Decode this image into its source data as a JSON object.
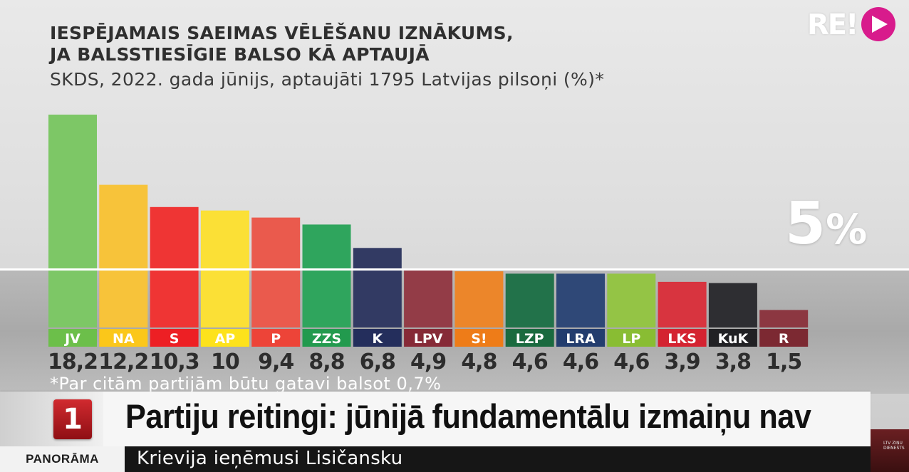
{
  "title_lines": [
    "Iespējamais Saeimas vēlēšanu iznākums,",
    "ja balsstiesīgie balso kā aptaujā"
  ],
  "subtitle": "SKDS, 2022. gada jūnijs, aptaujāti 1795 Latvijas pilsoņi (%)*",
  "logo": {
    "text": "RE!",
    "icon": "play-icon",
    "accent": "#d81b8c"
  },
  "threshold_label": {
    "number": "5",
    "unit": "%"
  },
  "footnote": "*Par citām partijām būtu gatavi balsot 0,7%",
  "ticker": {
    "channel_logo": "1",
    "headline": "Partiju reitingi: jūnijā fundamentālu izmaiņu nav",
    "program": "PANORĀMA",
    "subline": "Krievija ieņēmusi Lisičansku",
    "corner_text": "LTV ZIŅU DIENESTS"
  },
  "chart_data": {
    "type": "bar",
    "title": "Iespējamais Saeimas vēlēšanu iznākums, ja balsstiesīgie balso kā aptaujā",
    "subtitle": "SKDS, 2022. gada jūnijs, aptaujāti 1795 Latvijas pilsoņi (%)*",
    "categories": [
      "JV",
      "NA",
      "S",
      "AP",
      "P",
      "ZZS",
      "K",
      "LPV",
      "S!",
      "LZP",
      "LRA",
      "LP",
      "LKS",
      "KuK",
      "R"
    ],
    "values": [
      18.2,
      12.2,
      10.3,
      10,
      9.4,
      8.8,
      6.8,
      4.9,
      4.8,
      4.6,
      4.6,
      4.6,
      3.9,
      3.8,
      1.5
    ],
    "value_labels": [
      "18,2",
      "12,2",
      "10,3",
      "10",
      "9,4",
      "8,8",
      "6,8",
      "4,9",
      "4,8",
      "4,6",
      "4,6",
      "4,6",
      "3,9",
      "3,8",
      "1,5"
    ],
    "colors": [
      "#7dc766",
      "#f7c33a",
      "#ef3534",
      "#fbe036",
      "#ea5a4d",
      "#2fa55d",
      "#323a63",
      "#933c47",
      "#ec862a",
      "#22724a",
      "#2f4877",
      "#94c445",
      "#d8343f",
      "#2e2e32",
      "#8c3741"
    ],
    "label_colors": [
      "#6cbf4a",
      "#fbc71a",
      "#ed1f24",
      "#fde21c",
      "#ed4438",
      "#229a4e",
      "#242e5c",
      "#862a37",
      "#ee7c18",
      "#1a6a3f",
      "#233d6e",
      "#89bd33",
      "#d42331",
      "#212124",
      "#7c2932"
    ],
    "threshold": 5,
    "ylim": [
      0,
      18.2
    ],
    "xlabel": "",
    "ylabel": "",
    "grid": false,
    "legend": "none"
  }
}
